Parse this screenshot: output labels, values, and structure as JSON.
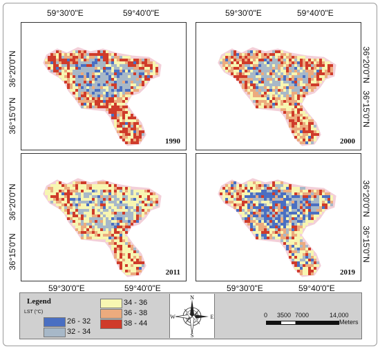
{
  "top_longitude_labels": [
    "59°30'0\"E",
    "59°40'0\"E"
  ],
  "bottom_longitude_labels": [
    "59°30'0\"E",
    "59°40'0\"E"
  ],
  "left_latitude_labels": [
    "36°20'0\"N",
    "36°15'0\"N"
  ],
  "right_latitude_labels": [
    "36°20'0\"N",
    "36°15'0\"N"
  ],
  "panels": [
    {
      "year": "1990"
    },
    {
      "year": "2000"
    },
    {
      "year": "2011"
    },
    {
      "year": "2019"
    }
  ],
  "legend": {
    "title": "Legend",
    "subtitle": "LST (°C)",
    "classes": [
      {
        "label": "26 - 32",
        "color": "#4a6fc2"
      },
      {
        "label": "32 - 34",
        "color": "#a7b8c8"
      },
      {
        "label": "34 - 36",
        "color": "#f7f6b2"
      },
      {
        "label": "36 - 38",
        "color": "#ecab7e"
      },
      {
        "label": "38 - 44",
        "color": "#cf3b2a"
      }
    ]
  },
  "compass": {
    "n": "N",
    "s": "S",
    "e": "E",
    "w": "W",
    "icon": "compass-rose-icon"
  },
  "scale": {
    "labels": [
      "0",
      "3500",
      "7000",
      "14,000"
    ],
    "unit": "Meters"
  }
}
